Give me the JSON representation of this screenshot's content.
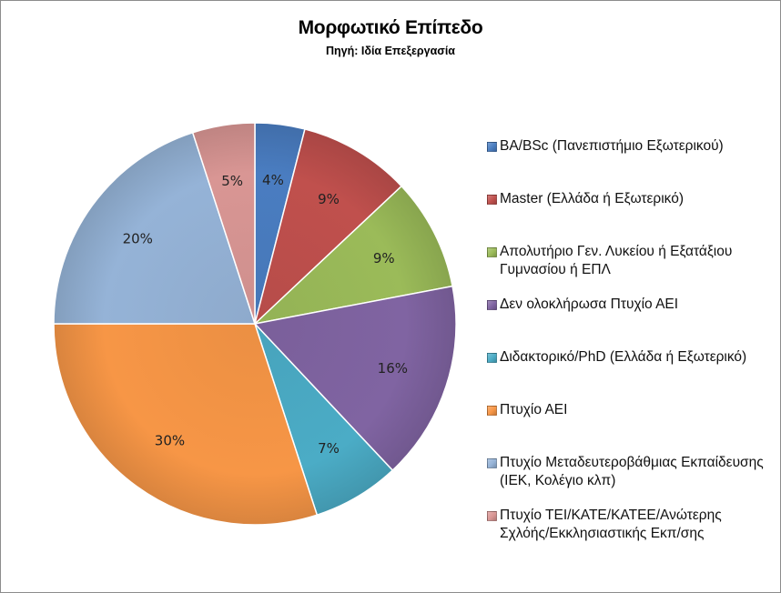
{
  "chart_data": {
    "type": "pie",
    "title": "Μορφωτικό Επίπεδο",
    "subtitle": "Πηγή: Ιδία Επεξεργασία",
    "legend_position": "right",
    "slices": [
      {
        "label": "BA/BSc (Πανεπιστήμιο Εξωτερικού)",
        "value": 4,
        "display": "4%",
        "color": "#4A7DC1"
      },
      {
        "label": "Master (Ελλάδα ή Εξωτερικό)",
        "value": 9,
        "display": "9%",
        "color": "#C0504D"
      },
      {
        "label": "Απολυτήριο Γεν. Λυκείου ή Εξατάξιου Γυμνασίου ή ΕΠΛ",
        "value": 9,
        "display": "9%",
        "color": "#9BBB59"
      },
      {
        "label": "Δεν ολοκλήρωσα Πτυχίο ΑΕΙ",
        "value": 16,
        "display": "16%",
        "color": "#8064A2"
      },
      {
        "label": "Διδακτορικό/PhD (Ελλάδα ή Εξωτερικό)",
        "value": 7,
        "display": "7%",
        "color": "#4BACC6"
      },
      {
        "label": "Πτυχίο ΑΕΙ",
        "value": 30,
        "display": "30%",
        "color": "#F79646"
      },
      {
        "label": "Πτυχίο Μεταδευτεροβάθμιας Εκπαίδευσης (ΙΕΚ, Κολέγιο κλπ)",
        "value": 20,
        "display": "20%",
        "color": "#95B3D7"
      },
      {
        "label": "Πτυχίο ΤΕΙ/ΚΑΤΕ/ΚΑΤΕΕ/Ανώτερης Σχλόής/Εκκλησιαστικής Εκπ/σης",
        "value": 5,
        "display": "5%",
        "color": "#D99694"
      }
    ]
  }
}
